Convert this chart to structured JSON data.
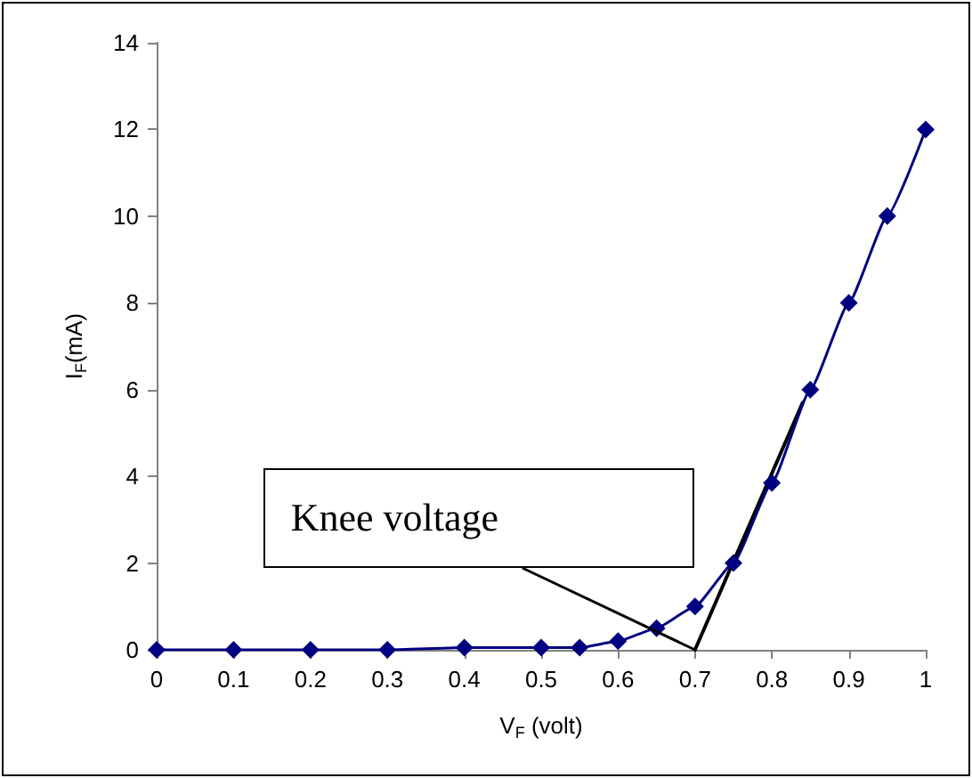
{
  "chart_data": {
    "type": "line",
    "xlabel": "V$_{F}$ (volt)",
    "ylabel": "I$_{F}$(mA)",
    "x": [
      0,
      0.1,
      0.2,
      0.3,
      0.4,
      0.5,
      0.55,
      0.6,
      0.65,
      0.7,
      0.75,
      0.8,
      0.85,
      0.9,
      0.95,
      1
    ],
    "series": [
      {
        "color": "#000080",
        "values": [
          0,
          0,
          0,
          0,
          0.05,
          0.05,
          0.05,
          0.2,
          0.5,
          1.0,
          2.0,
          3.85,
          6.0,
          8.0,
          10.0,
          12.0
        ]
      },
      {
        "type": "line",
        "x": [
          0.7,
          0.84
        ],
        "values": [
          0,
          5.7
        ],
        "color": "#000000",
        "marker": "none"
      }
    ],
    "xlim": [
      0,
      1
    ],
    "xticks": [
      0,
      0.1,
      0.2,
      0.3,
      0.4,
      0.5,
      0.6,
      0.7,
      0.8,
      0.9,
      1
    ],
    "ylim": [
      0,
      14
    ],
    "yticks": [
      0,
      2,
      4,
      6,
      8,
      10,
      12,
      14
    ],
    "annotations": [
      {
        "text": "Knee voltage",
        "x": 0.7,
        "y": 0
      }
    ],
    "marker": "diamond",
    "line_style": "solid",
    "grid": false
  }
}
